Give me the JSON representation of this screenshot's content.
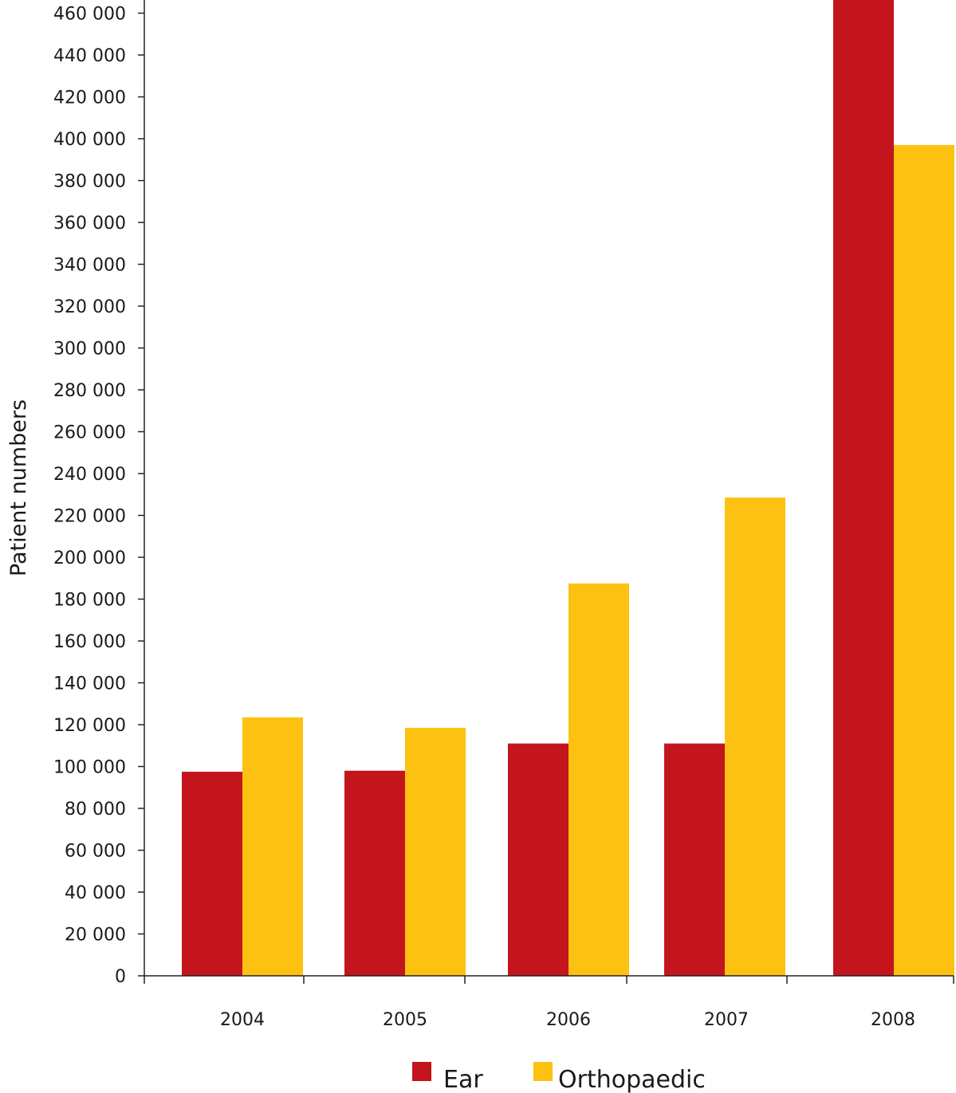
{
  "chart_data": {
    "type": "bar",
    "categories": [
      "2004",
      "2005",
      "2006",
      "2007",
      "2008"
    ],
    "series": [
      {
        "name": "Ear",
        "color": "#c4141c",
        "values": [
          97500,
          98000,
          111000,
          111000,
          470000
        ]
      },
      {
        "name": "Orthopaedic",
        "color": "#fdc112",
        "values": [
          123500,
          118500,
          187500,
          228500,
          397000
        ]
      }
    ],
    "xlabel": "",
    "ylabel": "Patient numbers",
    "ylim": [
      0,
      460000
    ],
    "yticks": [
      {
        "value": 0,
        "label": "0"
      },
      {
        "value": 20000,
        "label": "20 000"
      },
      {
        "value": 40000,
        "label": "40 000"
      },
      {
        "value": 60000,
        "label": "60 000"
      },
      {
        "value": 80000,
        "label": "80 000"
      },
      {
        "value": 100000,
        "label": "100 000"
      },
      {
        "value": 120000,
        "label": "120 000"
      },
      {
        "value": 140000,
        "label": "140 000"
      },
      {
        "value": 160000,
        "label": "160 000"
      },
      {
        "value": 180000,
        "label": "180 000"
      },
      {
        "value": 200000,
        "label": "200 000"
      },
      {
        "value": 220000,
        "label": "220 000"
      },
      {
        "value": 240000,
        "label": "240 000"
      },
      {
        "value": 260000,
        "label": "260 000"
      },
      {
        "value": 280000,
        "label": "280 000"
      },
      {
        "value": 300000,
        "label": "300 000"
      },
      {
        "value": 320000,
        "label": "320 000"
      },
      {
        "value": 340000,
        "label": "340 000"
      },
      {
        "value": 360000,
        "label": "360 000"
      },
      {
        "value": 380000,
        "label": "380 000"
      },
      {
        "value": 400000,
        "label": "400 000"
      },
      {
        "value": 420000,
        "label": "420 000"
      },
      {
        "value": 440000,
        "label": "440 000"
      },
      {
        "value": 460000,
        "label": "460 000"
      }
    ],
    "grid": false,
    "legend": "bottom"
  }
}
